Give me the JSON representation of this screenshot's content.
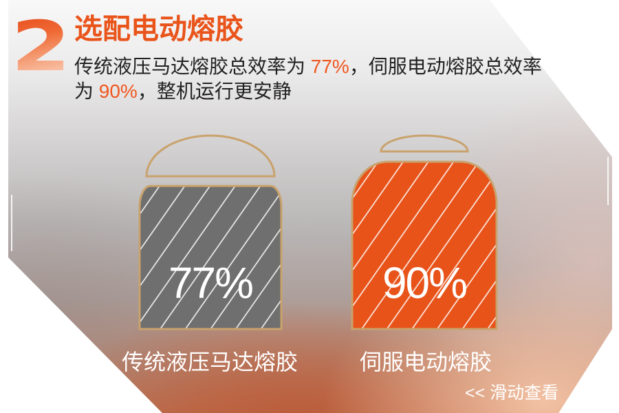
{
  "header": {
    "section_number": "2",
    "title": "选配电动熔胶",
    "description": {
      "line1": [
        "传统液压马达熔胶总效率为 ",
        "77%",
        "，伺服电动熔胶总效率"
      ],
      "line2": [
        "为 ",
        "90%",
        "，整机运行更安静"
      ]
    }
  },
  "chart_data": {
    "type": "bar",
    "categories": [
      "传统液压马达熔胶",
      "伺服电动熔胶"
    ],
    "values": [
      77,
      90
    ],
    "value_labels": [
      "77%",
      "90%"
    ],
    "bar_colors": [
      "#6f6f6f",
      "#e8531a"
    ],
    "outline_color": "#c9a26c",
    "hatched": true,
    "grid": false,
    "legend": false
  },
  "footer": {
    "swipe_hint": "<< 滑动查看"
  },
  "colors": {
    "accent": "#e9541b",
    "highlight": "#f0561d",
    "body_text": "#222222",
    "label_text": "#ffffff"
  }
}
